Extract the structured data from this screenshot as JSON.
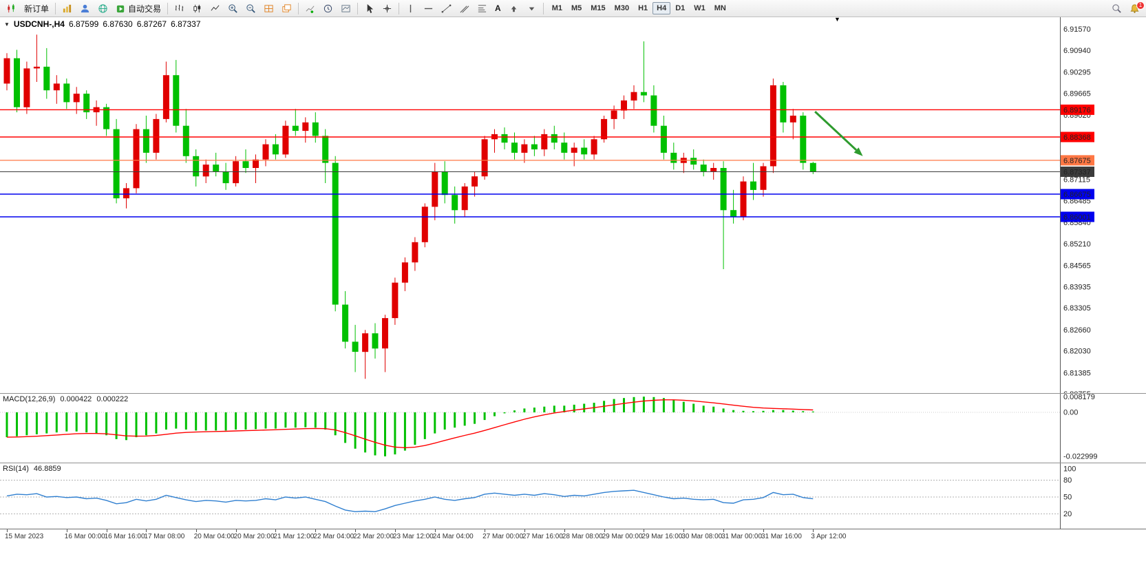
{
  "toolbar": {
    "new_order": "新订单",
    "auto_trading": "自动交易",
    "text_tool": "A",
    "timeframes": [
      "M1",
      "M5",
      "M15",
      "M30",
      "H1",
      "H4",
      "D1",
      "W1",
      "MN"
    ],
    "active_timeframe": "H4",
    "notification_count": "1"
  },
  "chart_data": [
    {
      "type": "candlestick",
      "title": "USDCNH-,H4",
      "symbol": "USDCNH-",
      "timeframe": "H4",
      "current": {
        "open": "6.87599",
        "high": "6.87630",
        "low": "6.87267",
        "close": "6.87337"
      },
      "up_color": "#e00000",
      "down_color": "#00c000",
      "color_convention": "red=up green=down",
      "y_axis_labels": [
        "6.91570",
        "6.90940",
        "6.90295",
        "6.89665",
        "6.89020",
        "6.88390",
        "6.87745",
        "6.87115",
        "6.86485",
        "6.85840",
        "6.85210",
        "6.84565",
        "6.83935",
        "6.83305",
        "6.82660",
        "6.82030",
        "6.81385",
        "6.80755"
      ],
      "x_axis_labels": [
        {
          "text": "15 Mar 2023",
          "index": 0
        },
        {
          "text": "16 Mar 00:00",
          "index": 6
        },
        {
          "text": "16 Mar 16:00",
          "index": 10
        },
        {
          "text": "17 Mar 08:00",
          "index": 14
        },
        {
          "text": "20 Mar 04:00",
          "index": 19
        },
        {
          "text": "20 Mar 20:00",
          "index": 23
        },
        {
          "text": "21 Mar 12:00",
          "index": 27
        },
        {
          "text": "22 Mar 04:00",
          "index": 31
        },
        {
          "text": "22 Mar 20:00",
          "index": 35
        },
        {
          "text": "23 Mar 12:00",
          "index": 39
        },
        {
          "text": "24 Mar 04:00",
          "index": 43
        },
        {
          "text": "27 Mar 00:00",
          "index": 48
        },
        {
          "text": "27 Mar 16:00",
          "index": 52
        },
        {
          "text": "28 Mar 08:00",
          "index": 56
        },
        {
          "text": "29 Mar 00:00",
          "index": 60
        },
        {
          "text": "29 Mar 16:00",
          "index": 64
        },
        {
          "text": "30 Mar 08:00",
          "index": 68
        },
        {
          "text": "31 Mar 00:00",
          "index": 72
        },
        {
          "text": "31 Mar 16:00",
          "index": 76
        },
        {
          "text": "3 Apr 12:00",
          "index": 81
        }
      ],
      "hlines": [
        {
          "price": 6.89176,
          "label": "6.89176",
          "color": "#ff0000",
          "width": 1.4
        },
        {
          "price": 6.88368,
          "label": "6.88368",
          "color": "#ff0000",
          "width": 1.4
        },
        {
          "price": 6.87675,
          "label": "6.87675",
          "color": "#ff7744",
          "width": 1.2
        },
        {
          "price": 6.87337,
          "label": "6.87337",
          "color": "#3c3c3c",
          "width": 1
        },
        {
          "price": 6.86675,
          "label": "6.86675",
          "color": "#0000ee",
          "width": 1.4
        },
        {
          "price": 6.86001,
          "label": "6.86001",
          "color": "#0000ee",
          "width": 1.4
        }
      ],
      "trend_arrow": {
        "from": {
          "index": 81.2,
          "price": 6.8912
        },
        "to": {
          "index": 86,
          "price": 6.878
        },
        "color": "#2e9b2e"
      },
      "candles": [
        [
          6.8995,
          6.9085,
          6.8975,
          6.907
        ],
        [
          6.907,
          6.9095,
          6.891,
          6.8925
        ],
        [
          6.8925,
          6.906,
          6.8905,
          6.904
        ],
        [
          6.904,
          6.914,
          6.9,
          6.9045
        ],
        [
          6.9045,
          6.91,
          6.895,
          6.8975
        ],
        [
          6.8975,
          6.902,
          6.8935,
          6.8995
        ],
        [
          6.8995,
          6.901,
          6.892,
          6.894
        ],
        [
          6.894,
          6.8985,
          6.8905,
          6.8965
        ],
        [
          6.8965,
          6.8975,
          6.889,
          6.891
        ],
        [
          6.891,
          6.8945,
          6.887,
          6.8925
        ],
        [
          6.8925,
          6.8935,
          6.884,
          6.886
        ],
        [
          6.886,
          6.889,
          6.864,
          6.8655
        ],
        [
          6.8655,
          6.87,
          6.8625,
          6.8685
        ],
        [
          6.8685,
          6.8875,
          6.867,
          6.886
        ],
        [
          6.886,
          6.89,
          6.876,
          6.879
        ],
        [
          6.879,
          6.8905,
          6.877,
          6.889
        ],
        [
          6.889,
          6.906,
          6.888,
          6.902
        ],
        [
          6.902,
          6.9065,
          6.885,
          6.887
        ],
        [
          6.887,
          6.892,
          6.876,
          6.878
        ],
        [
          6.878,
          6.88,
          6.869,
          6.872
        ],
        [
          6.872,
          6.877,
          6.87,
          6.8755
        ],
        [
          6.8755,
          6.879,
          6.872,
          6.8735
        ],
        [
          6.8735,
          6.876,
          6.868,
          6.87
        ],
        [
          6.87,
          6.878,
          6.869,
          6.8765
        ],
        [
          6.8765,
          6.88,
          6.873,
          6.8745
        ],
        [
          6.8745,
          6.8785,
          6.87,
          6.877
        ],
        [
          6.877,
          6.883,
          6.875,
          6.8815
        ],
        [
          6.8815,
          6.8845,
          6.877,
          6.8785
        ],
        [
          6.8785,
          6.8885,
          6.8775,
          6.887
        ],
        [
          6.887,
          6.892,
          6.884,
          6.8855
        ],
        [
          6.8855,
          6.8895,
          6.882,
          6.888
        ],
        [
          6.888,
          6.891,
          6.882,
          6.884
        ],
        [
          6.884,
          6.886,
          6.87,
          6.876
        ],
        [
          6.876,
          6.878,
          6.832,
          6.834
        ],
        [
          6.834,
          6.838,
          6.821,
          6.823
        ],
        [
          6.823,
          6.828,
          6.814,
          6.82
        ],
        [
          6.82,
          6.8265,
          6.812,
          6.8255
        ],
        [
          6.8255,
          6.8285,
          6.818,
          6.821
        ],
        [
          6.821,
          6.831,
          6.814,
          6.83
        ],
        [
          6.83,
          6.842,
          6.828,
          6.8405
        ],
        [
          6.8405,
          6.848,
          6.838,
          6.8465
        ],
        [
          6.8465,
          6.854,
          6.844,
          6.8525
        ],
        [
          6.8525,
          6.864,
          6.851,
          6.863
        ],
        [
          6.863,
          6.876,
          6.859,
          6.8735
        ],
        [
          6.8735,
          6.8765,
          6.864,
          6.8665
        ],
        [
          6.8665,
          6.869,
          6.858,
          6.862
        ],
        [
          6.862,
          6.87,
          6.86,
          6.869
        ],
        [
          6.869,
          6.8735,
          6.866,
          6.872
        ],
        [
          6.872,
          6.884,
          6.871,
          6.883
        ],
        [
          6.883,
          6.886,
          6.879,
          6.8845
        ],
        [
          6.8845,
          6.8865,
          6.88,
          6.882
        ],
        [
          6.882,
          6.885,
          6.877,
          6.879
        ],
        [
          6.879,
          6.883,
          6.876,
          6.8815
        ],
        [
          6.8815,
          6.884,
          6.878,
          6.88
        ],
        [
          6.88,
          6.886,
          6.878,
          6.8845
        ],
        [
          6.8845,
          6.887,
          6.88,
          6.882
        ],
        [
          6.882,
          6.885,
          6.877,
          6.879
        ],
        [
          6.879,
          6.882,
          6.875,
          6.8805
        ],
        [
          6.8805,
          6.883,
          6.877,
          6.8785
        ],
        [
          6.8785,
          6.884,
          6.877,
          6.883
        ],
        [
          6.883,
          6.89,
          6.882,
          6.889
        ],
        [
          6.889,
          6.893,
          6.886,
          6.8915
        ],
        [
          6.8915,
          6.896,
          6.889,
          6.8945
        ],
        [
          6.8945,
          6.899,
          6.892,
          6.897
        ],
        [
          6.897,
          6.912,
          6.894,
          6.896
        ],
        [
          6.896,
          6.899,
          6.885,
          6.887
        ],
        [
          6.887,
          6.89,
          6.877,
          6.879
        ],
        [
          6.879,
          6.882,
          6.874,
          6.876
        ],
        [
          6.876,
          6.879,
          6.873,
          6.8775
        ],
        [
          6.8775,
          6.88,
          6.874,
          6.8755
        ],
        [
          6.8755,
          6.877,
          6.872,
          6.8735
        ],
        [
          6.8735,
          6.876,
          6.871,
          6.8745
        ],
        [
          6.8745,
          6.8765,
          6.8445,
          6.862
        ],
        [
          6.862,
          6.868,
          6.858,
          6.86
        ],
        [
          6.86,
          6.872,
          6.859,
          6.8705
        ],
        [
          6.8705,
          6.876,
          6.865,
          6.868
        ],
        [
          6.868,
          6.876,
          6.866,
          6.875
        ],
        [
          6.875,
          6.901,
          6.873,
          6.899
        ],
        [
          6.899,
          6.9,
          6.885,
          6.888
        ],
        [
          6.888,
          6.892,
          6.883,
          6.89
        ],
        [
          6.89,
          6.891,
          6.874,
          6.876
        ],
        [
          6.87599,
          6.8763,
          6.87267,
          6.87337
        ]
      ]
    },
    {
      "type": "bar",
      "name": "MACD(12,26,9)",
      "current_main": "0.000422",
      "current_signal": "0.000222",
      "y_axis_labels": [
        "0.008179",
        "0.00",
        "-0.022999"
      ],
      "histogram_color": "#00c000",
      "signal_color": "#ff0000",
      "values": [
        -0.013,
        -0.0125,
        -0.012,
        -0.0115,
        -0.011,
        -0.0105,
        -0.01,
        -0.01,
        -0.0105,
        -0.011,
        -0.012,
        -0.014,
        -0.0145,
        -0.013,
        -0.012,
        -0.011,
        -0.009,
        -0.0085,
        -0.009,
        -0.0095,
        -0.0095,
        -0.0095,
        -0.0095,
        -0.009,
        -0.009,
        -0.0088,
        -0.0085,
        -0.0085,
        -0.008,
        -0.008,
        -0.0078,
        -0.008,
        -0.009,
        -0.012,
        -0.016,
        -0.019,
        -0.021,
        -0.0225,
        -0.023,
        -0.022,
        -0.02,
        -0.017,
        -0.014,
        -0.011,
        -0.009,
        -0.008,
        -0.007,
        -0.006,
        -0.004,
        -0.002,
        -0.0005,
        0.001,
        0.002,
        0.0025,
        0.003,
        0.0035,
        0.0035,
        0.004,
        0.0045,
        0.005,
        0.006,
        0.007,
        0.0075,
        0.008,
        0.0082,
        0.008,
        0.0075,
        0.0065,
        0.0055,
        0.0045,
        0.0035,
        0.003,
        0.002,
        0.0012,
        0.0008,
        0.0006,
        0.0008,
        0.0012,
        0.0012,
        0.0009,
        0.0006,
        0.000422
      ]
    },
    {
      "type": "line",
      "name": "RSI(14)",
      "current_value": "46.8859",
      "levels": [
        100,
        80,
        50,
        20
      ],
      "color": "#2f7fd0",
      "values": [
        52,
        55,
        54,
        56,
        50,
        51,
        49,
        50,
        47,
        48,
        44,
        38,
        40,
        46,
        43,
        46,
        53,
        49,
        45,
        42,
        44,
        43,
        41,
        44,
        43,
        44,
        47,
        45,
        50,
        48,
        50,
        46,
        42,
        34,
        27,
        24,
        25,
        24,
        29,
        35,
        39,
        43,
        46,
        50,
        46,
        44,
        47,
        49,
        55,
        57,
        55,
        53,
        55,
        53,
        56,
        54,
        51,
        53,
        52,
        55,
        58,
        60,
        61,
        62,
        58,
        54,
        50,
        47,
        48,
        46,
        45,
        46,
        40,
        39,
        45,
        46,
        49,
        58,
        54,
        55,
        49,
        46.8859
      ]
    }
  ]
}
